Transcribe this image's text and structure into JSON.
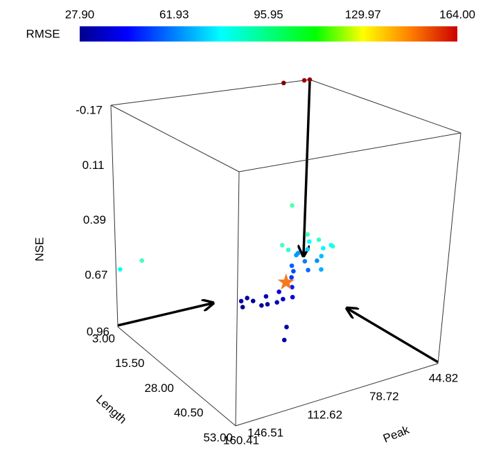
{
  "chart_data": {
    "type": "scatter3d",
    "colorbar": {
      "label": "RMSE",
      "clim": [
        27.9,
        164.0
      ],
      "ticks": [
        {
          "value": 27.9,
          "label": "27.90"
        },
        {
          "value": 61.93,
          "label": "61.93"
        },
        {
          "value": 95.95,
          "label": "95.95"
        },
        {
          "value": 129.97,
          "label": "129.97"
        },
        {
          "value": 164.0,
          "label": "164.00"
        }
      ]
    },
    "zlabel": "NSE",
    "zlim": [
      0.96,
      -0.17
    ],
    "zticks": [
      -0.17,
      0.11,
      0.39,
      0.67,
      0.96
    ],
    "xlabel": "Length",
    "xlim": [
      3.0,
      53.0
    ],
    "xticks": [
      {
        "value": 3.0,
        "label": "3.00"
      },
      {
        "value": 15.5,
        "label": "15.50"
      },
      {
        "value": 28.0,
        "label": "28.00"
      },
      {
        "value": 40.5,
        "label": "40.50"
      },
      {
        "value": 53.0,
        "label": "53.00"
      }
    ],
    "ylabel": "Peak",
    "ylim": [
      160.41,
      44.82
    ],
    "yticks": [
      160.41,
      146.51,
      112.62,
      78.72,
      44.82
    ],
    "length": [
      22,
      24,
      21,
      25,
      23,
      26,
      20,
      27,
      24,
      28,
      22,
      30,
      32,
      25,
      22,
      20,
      18,
      23,
      19,
      21,
      17,
      24,
      15,
      20,
      16,
      18,
      14,
      19,
      15,
      12,
      17,
      22,
      21,
      5,
      3,
      5,
      3,
      3,
      3
    ],
    "peak": [
      108,
      106,
      110,
      104,
      102,
      100,
      112,
      98,
      96,
      94,
      114,
      100,
      104,
      90,
      86,
      82,
      80,
      78,
      74,
      70,
      76,
      72,
      72,
      66,
      68,
      62,
      64,
      58,
      60,
      62,
      56,
      88,
      90,
      60,
      158,
      148,
      60,
      48,
      44.82
    ],
    "nse": [
      0.74,
      0.75,
      0.73,
      0.74,
      0.72,
      0.73,
      0.75,
      0.71,
      0.7,
      0.7,
      0.76,
      0.82,
      0.86,
      0.68,
      0.66,
      0.65,
      0.64,
      0.63,
      0.62,
      0.61,
      0.6,
      0.63,
      0.61,
      0.6,
      0.59,
      0.58,
      0.57,
      0.57,
      0.56,
      0.55,
      0.58,
      0.52,
      0.5,
      0.45,
      0.67,
      0.62,
      -0.17,
      -0.17,
      -0.17
    ],
    "rmse": [
      30,
      31,
      32,
      33,
      35,
      36,
      34,
      38,
      40,
      42,
      30,
      34,
      33,
      48,
      52,
      55,
      58,
      60,
      62,
      64,
      66,
      68,
      65,
      70,
      72,
      78,
      80,
      84,
      86,
      88,
      82,
      85,
      88,
      90,
      80,
      88,
      164,
      160,
      162
    ],
    "best": {
      "length": 24,
      "peak": 92,
      "nse": 0.66,
      "rmse": 27.9,
      "color": "#f47a1f"
    }
  }
}
